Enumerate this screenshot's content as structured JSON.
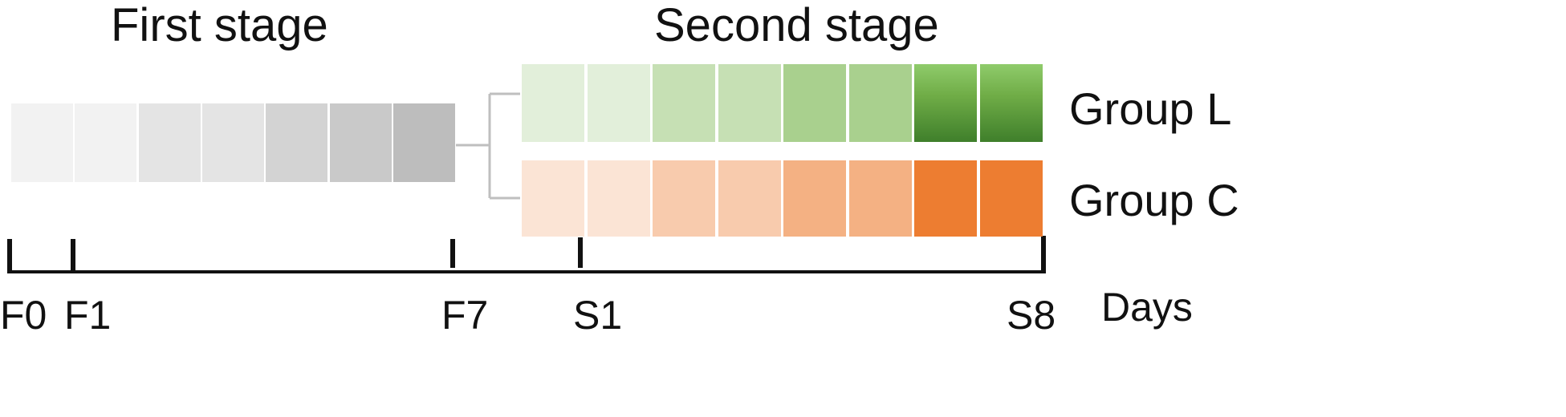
{
  "titles": {
    "first_stage": "First stage",
    "second_stage": "Second stage"
  },
  "first_stage_cells": [
    "#f2f2f2",
    "#f2f2f2",
    "#e4e4e4",
    "#e4e4e4",
    "#d3d3d3",
    "#c9c9c9",
    "#bdbdbd"
  ],
  "groups": [
    {
      "label": "Group L",
      "cells": [
        "#e2efda",
        "#e2efda",
        "#c6e0b4",
        "#c6e0b4",
        "#a9d08e",
        "#a9d08e",
        "#58953a",
        "#5fa23e"
      ],
      "accent_color": "#70ad47"
    },
    {
      "label": "Group C",
      "cells": [
        "#fbe4d5",
        "#fbe4d5",
        "#f8cbad",
        "#f8cbad",
        "#f4b183",
        "#f4b183",
        "#ed7d31",
        "#ed7d31"
      ],
      "accent_color": "#ed7d31"
    }
  ],
  "timeline": {
    "axis_label": "Days",
    "ticks": [
      "F0",
      "F1",
      "F7",
      "S1",
      "S8"
    ]
  }
}
